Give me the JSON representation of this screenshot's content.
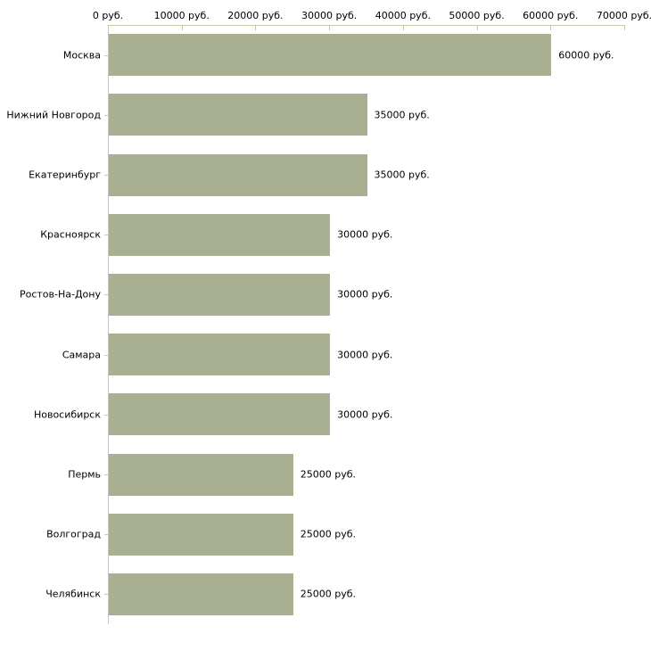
{
  "chart_data": {
    "type": "bar",
    "orientation": "horizontal",
    "title": "",
    "categories": [
      "Москва",
      "Нижний Новгород",
      "Екатеринбург",
      "Красноярск",
      "Ростов-На-Дону",
      "Самара",
      "Новосибирск",
      "Пермь",
      "Волгоград",
      "Челябинск"
    ],
    "values": [
      60000,
      35000,
      35000,
      30000,
      30000,
      30000,
      30000,
      25000,
      25000,
      25000
    ],
    "value_labels": [
      "60000 руб.",
      "35000 руб.",
      "35000 руб.",
      "30000 руб.",
      "30000 руб.",
      "30000 руб.",
      "30000 руб.",
      "25000 руб.",
      "25000 руб.",
      "25000 руб."
    ],
    "x_tick_values": [
      0,
      10000,
      20000,
      30000,
      40000,
      50000,
      60000,
      70000
    ],
    "x_tick_labels": [
      "0 руб.",
      "10000 руб.",
      "20000 руб.",
      "30000 руб.",
      "40000 руб.",
      "50000 руб.",
      "60000 руб.",
      "70000 руб."
    ],
    "xlim": [
      0,
      70000
    ],
    "unit_suffix": " руб.",
    "grid": false,
    "legend_position": "none",
    "colors": {
      "bar": "#a9b092",
      "axis": "#c9c9a3",
      "text": "#000000",
      "background": "#ffffff"
    }
  }
}
